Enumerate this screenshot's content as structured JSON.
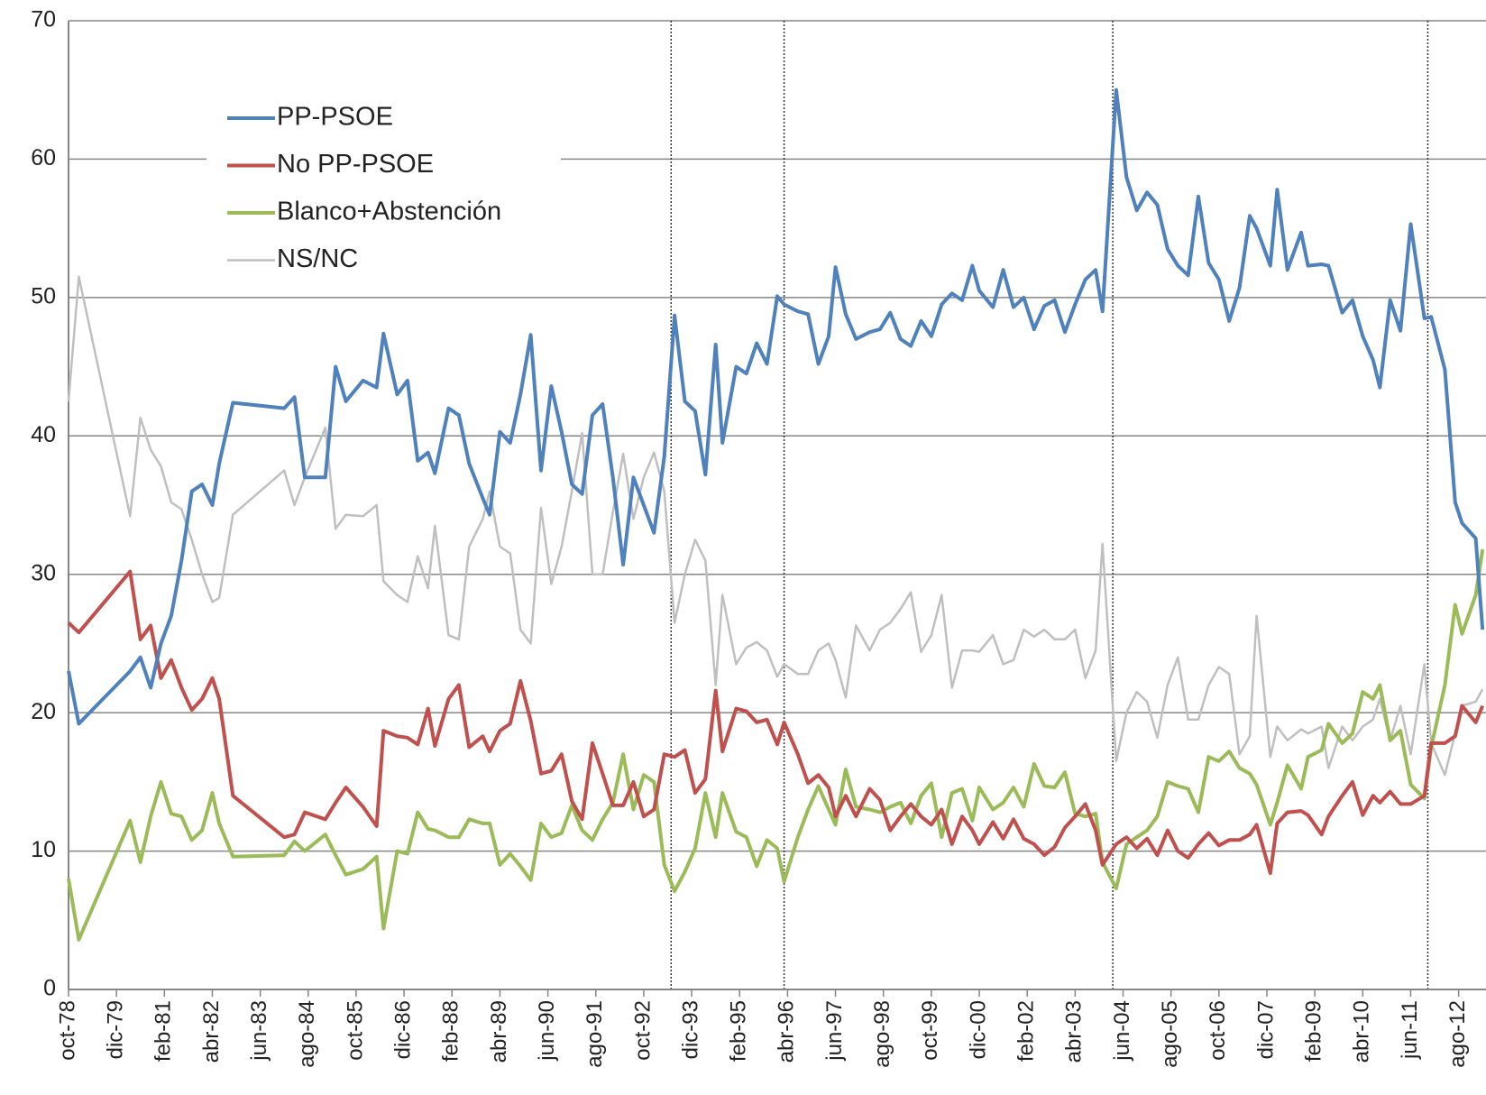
{
  "chart_data": {
    "type": "line",
    "x": [
      "1978-10",
      "1979-01",
      "1980-04",
      "1980-07",
      "1980-10",
      "1981-01",
      "1981-04",
      "1981-07",
      "1981-10",
      "1982-01",
      "1982-04",
      "1982-06",
      "1982-10",
      "1984-01",
      "1984-04",
      "1984-07",
      "1985-01",
      "1985-04",
      "1985-07",
      "1985-12",
      "1986-04",
      "1986-06",
      "1986-10",
      "1987-01",
      "1987-04",
      "1987-07",
      "1987-09",
      "1988-01",
      "1988-04",
      "1988-07",
      "1988-11",
      "1989-01",
      "1989-04",
      "1989-07",
      "1989-10",
      "1990-01",
      "1990-04",
      "1990-07",
      "1990-10",
      "1991-01",
      "1991-04",
      "1991-07",
      "1991-10",
      "1992-01",
      "1992-04",
      "1992-07",
      "1992-10",
      "1993-01",
      "1993-04",
      "1993-07",
      "1993-10",
      "1994-01",
      "1994-04",
      "1994-07",
      "1994-09",
      "1995-01",
      "1995-04",
      "1995-07",
      "1995-10",
      "1996-01",
      "1996-03",
      "1996-07",
      "1996-10",
      "1997-01",
      "1997-04",
      "1997-06",
      "1997-09",
      "1997-12",
      "1998-04",
      "1998-07",
      "1998-10",
      "1999-01",
      "1999-04",
      "1999-07",
      "1999-10",
      "2000-01",
      "2000-04",
      "2000-07",
      "2000-10",
      "2000-12",
      "2001-04",
      "2001-07",
      "2001-10",
      "2002-01",
      "2002-04",
      "2002-07",
      "2002-10",
      "2003-01",
      "2003-04",
      "2003-07",
      "2003-10",
      "2003-12",
      "2004-04",
      "2004-07",
      "2004-10",
      "2005-01",
      "2005-04",
      "2005-07",
      "2005-10",
      "2006-01",
      "2006-04",
      "2006-07",
      "2006-10",
      "2007-01",
      "2007-04",
      "2007-07",
      "2007-09",
      "2008-01",
      "2008-03",
      "2008-06",
      "2008-10",
      "2008-12",
      "2009-04",
      "2009-06",
      "2009-10",
      "2010-01",
      "2010-04",
      "2010-07",
      "2010-09",
      "2010-12",
      "2011-03",
      "2011-06",
      "2011-10",
      "2011-12",
      "2012-04",
      "2012-07",
      "2012-09",
      "2013-01",
      "2013-03"
    ],
    "series": [
      {
        "name": "PP-PSOE",
        "color": "#4f81bd",
        "values": [
          23,
          19.2,
          23,
          24,
          21.8,
          25,
          27,
          31,
          36,
          36.5,
          35,
          38,
          42.4,
          42,
          42.8,
          37,
          37,
          45,
          42.5,
          44,
          43.5,
          47.4,
          43,
          44,
          38.2,
          38.8,
          37.3,
          42,
          41.5,
          38,
          35.5,
          34.3,
          40.3,
          39.5,
          43,
          47.3,
          37.5,
          43.6,
          40.3,
          36.5,
          35.8,
          41.5,
          42.3,
          37,
          30.7,
          37,
          35,
          33,
          38.5,
          48.7,
          42.5,
          41.8,
          37.2,
          46.6,
          39.5,
          45,
          44.5,
          46.7,
          45.2,
          50.1,
          49.5,
          49,
          48.8,
          45.2,
          47.2,
          52.2,
          48.8,
          47,
          47.5,
          47.7,
          48.9,
          47,
          46.5,
          48.3,
          47.2,
          49.5,
          50.3,
          49.8,
          52.3,
          50.5,
          49.3,
          52,
          49.3,
          50,
          47.7,
          49.4,
          49.8,
          47.5,
          49.5,
          51.3,
          52,
          49,
          65,
          58.7,
          56.3,
          57.6,
          56.7,
          53.5,
          52.3,
          51.6,
          57.3,
          52.5,
          51.3,
          48.3,
          50.7,
          55.9,
          55,
          52.3,
          57.8,
          52,
          54.7,
          52.3,
          52.4,
          52.3,
          48.9,
          49.8,
          47.2,
          45.5,
          43.5,
          49.8,
          47.6,
          55.3,
          48.5,
          48.6,
          44.8,
          35.2,
          33.7,
          32.6,
          26
        ]
      },
      {
        "name": "No PP-PSOE",
        "color": "#c0504d",
        "values": [
          26.5,
          25.8,
          30.2,
          25.3,
          26.3,
          22.5,
          23.8,
          21.8,
          20.2,
          21,
          22.5,
          21,
          14,
          11,
          11.2,
          12.8,
          12.3,
          13.5,
          14.6,
          13.2,
          11.8,
          18.7,
          18.3,
          18.2,
          17.7,
          20.3,
          17.6,
          21,
          22,
          17.5,
          18.3,
          17.2,
          18.7,
          19.2,
          22.3,
          19.4,
          15.6,
          15.8,
          17,
          13.6,
          12.3,
          17.8,
          15.6,
          13.3,
          13.3,
          15,
          12.5,
          13,
          17,
          16.8,
          17.3,
          14.2,
          15.2,
          21.6,
          17.2,
          20.3,
          20.1,
          19.3,
          19.5,
          17.7,
          19.3,
          17,
          14.9,
          15.5,
          14.6,
          12.5,
          14,
          12.5,
          14.5,
          13.7,
          11.5,
          12.5,
          13.4,
          12.5,
          11.9,
          13,
          10.5,
          12.5,
          11.5,
          10.5,
          12.1,
          10.9,
          12.3,
          10.9,
          10.5,
          9.7,
          10.3,
          11.7,
          12.5,
          13.4,
          11.5,
          9,
          10.5,
          11,
          10.2,
          10.9,
          9.7,
          11.5,
          10,
          9.5,
          10.5,
          11.3,
          10.4,
          10.8,
          10.8,
          11.2,
          11.9,
          8.4,
          12,
          12.8,
          12.9,
          12.6,
          11.2,
          12.5,
          14,
          15,
          12.6,
          14,
          13.5,
          14.3,
          13.4,
          13.4,
          14,
          17.8,
          17.8,
          18.3,
          20.5,
          19.3,
          20.5
        ]
      },
      {
        "name": "Blanco+Abstención",
        "color": "#9bbb59",
        "values": [
          8,
          3.6,
          12.2,
          9.2,
          12.5,
          15,
          12.7,
          12.5,
          10.8,
          11.5,
          14.2,
          12,
          9.6,
          9.7,
          10.7,
          10,
          11.2,
          9.7,
          8.3,
          8.7,
          9.6,
          4.4,
          10,
          9.8,
          12.8,
          11.6,
          11.5,
          11,
          11,
          12.3,
          12,
          12,
          9,
          9.8,
          8.9,
          7.9,
          12,
          11,
          11.3,
          13.3,
          11.5,
          10.8,
          12.3,
          13.5,
          17,
          13,
          15.5,
          15,
          9,
          7.1,
          8.5,
          10.2,
          14.2,
          11,
          14.2,
          11.4,
          11,
          8.9,
          10.8,
          10.2,
          7.8,
          11,
          13,
          14.7,
          13,
          11.9,
          15.9,
          13.2,
          13,
          12.8,
          13.2,
          13.5,
          12,
          14,
          14.9,
          11,
          14.2,
          14.5,
          12.2,
          14.6,
          13,
          13.5,
          14.6,
          13.2,
          16.3,
          14.7,
          14.6,
          15.7,
          12.7,
          12.5,
          12.7,
          9.2,
          7.3,
          10.5,
          11,
          11.5,
          12.5,
          15,
          14.7,
          14.5,
          12.8,
          16.8,
          16.5,
          17.2,
          16,
          15.6,
          14.8,
          11.9,
          13.5,
          16.2,
          14.5,
          16.8,
          17.3,
          19.2,
          17.8,
          18.5,
          21.5,
          21,
          22,
          18,
          18.7,
          14.8,
          13.8,
          17.5,
          22,
          27.8,
          25.7,
          28.5,
          31.8
        ]
      },
      {
        "name": "NS/NC",
        "color": "#bfbfbf",
        "values": [
          42.5,
          51.5,
          34.2,
          41.3,
          39,
          37.8,
          35.2,
          34.7,
          32.5,
          30,
          28,
          28.3,
          34.3,
          37.5,
          35,
          37,
          40.6,
          33.3,
          34.3,
          34.2,
          35,
          29.5,
          28.5,
          28,
          31.3,
          29,
          33.5,
          25.6,
          25.3,
          32,
          34,
          36,
          32,
          31.5,
          26,
          25,
          34.8,
          29.3,
          32,
          36,
          40.2,
          30,
          30,
          34.5,
          38.7,
          34,
          37,
          38.8,
          36,
          26.5,
          30,
          32.5,
          31,
          22,
          28.5,
          23.5,
          24.7,
          25.1,
          24.5,
          22.6,
          23.5,
          22.8,
          22.8,
          24.5,
          25,
          23.8,
          21.1,
          26.3,
          24.5,
          26,
          26.5,
          27.5,
          28.7,
          24.4,
          25.6,
          28.5,
          21.8,
          24.5,
          24.5,
          24.4,
          25.6,
          23.5,
          23.8,
          26,
          25.5,
          26,
          25.3,
          25.3,
          26,
          22.5,
          24.5,
          32.2,
          16.5,
          20,
          21.5,
          20.8,
          18.2,
          22,
          24,
          19.5,
          19.5,
          22,
          23.3,
          22.8,
          17,
          18.3,
          27,
          16.8,
          19,
          18,
          18.8,
          18.5,
          19,
          16,
          19,
          18,
          19,
          19.5,
          21,
          18,
          20.5,
          17,
          23.5,
          17.8,
          15.5,
          18.5,
          20.5,
          20.8,
          21.7
        ]
      }
    ],
    "xlim": [
      "1978-10",
      "2013-04"
    ],
    "xticks": [
      {
        "value": "1978-10",
        "label": "oct-78"
      },
      {
        "value": "1979-12",
        "label": "dic-79"
      },
      {
        "value": "1981-02",
        "label": "feb-81"
      },
      {
        "value": "1982-04",
        "label": "abr-82"
      },
      {
        "value": "1983-06",
        "label": "jun-83"
      },
      {
        "value": "1984-08",
        "label": "ago-84"
      },
      {
        "value": "1985-10",
        "label": "oct-85"
      },
      {
        "value": "1986-12",
        "label": "dic-86"
      },
      {
        "value": "1988-02",
        "label": "feb-88"
      },
      {
        "value": "1989-04",
        "label": "abr-89"
      },
      {
        "value": "1990-06",
        "label": "jun-90"
      },
      {
        "value": "1991-08",
        "label": "ago-91"
      },
      {
        "value": "1992-10",
        "label": "oct-92"
      },
      {
        "value": "1993-12",
        "label": "dic-93"
      },
      {
        "value": "1995-02",
        "label": "feb-95"
      },
      {
        "value": "1996-04",
        "label": "abr-96"
      },
      {
        "value": "1997-06",
        "label": "jun-97"
      },
      {
        "value": "1998-08",
        "label": "ago-98"
      },
      {
        "value": "1999-10",
        "label": "oct-99"
      },
      {
        "value": "2000-12",
        "label": "dic-00"
      },
      {
        "value": "2002-02",
        "label": "feb-02"
      },
      {
        "value": "2003-04",
        "label": "abr-03"
      },
      {
        "value": "2004-06",
        "label": "jun-04"
      },
      {
        "value": "2005-08",
        "label": "ago-05"
      },
      {
        "value": "2006-10",
        "label": "oct-06"
      },
      {
        "value": "2007-12",
        "label": "dic-07"
      },
      {
        "value": "2009-02",
        "label": "feb-09"
      },
      {
        "value": "2010-04",
        "label": "abr-10"
      },
      {
        "value": "2011-06",
        "label": "jun-11"
      },
      {
        "value": "2012-08",
        "label": "ago-12"
      }
    ],
    "ylim": [
      0,
      70
    ],
    "yticks": [
      0,
      10,
      20,
      30,
      40,
      50,
      60,
      70
    ],
    "grid": true,
    "reference_lines": [
      "1993-06",
      "1996-03",
      "2004-03",
      "2011-11"
    ],
    "legend": "upper left"
  }
}
